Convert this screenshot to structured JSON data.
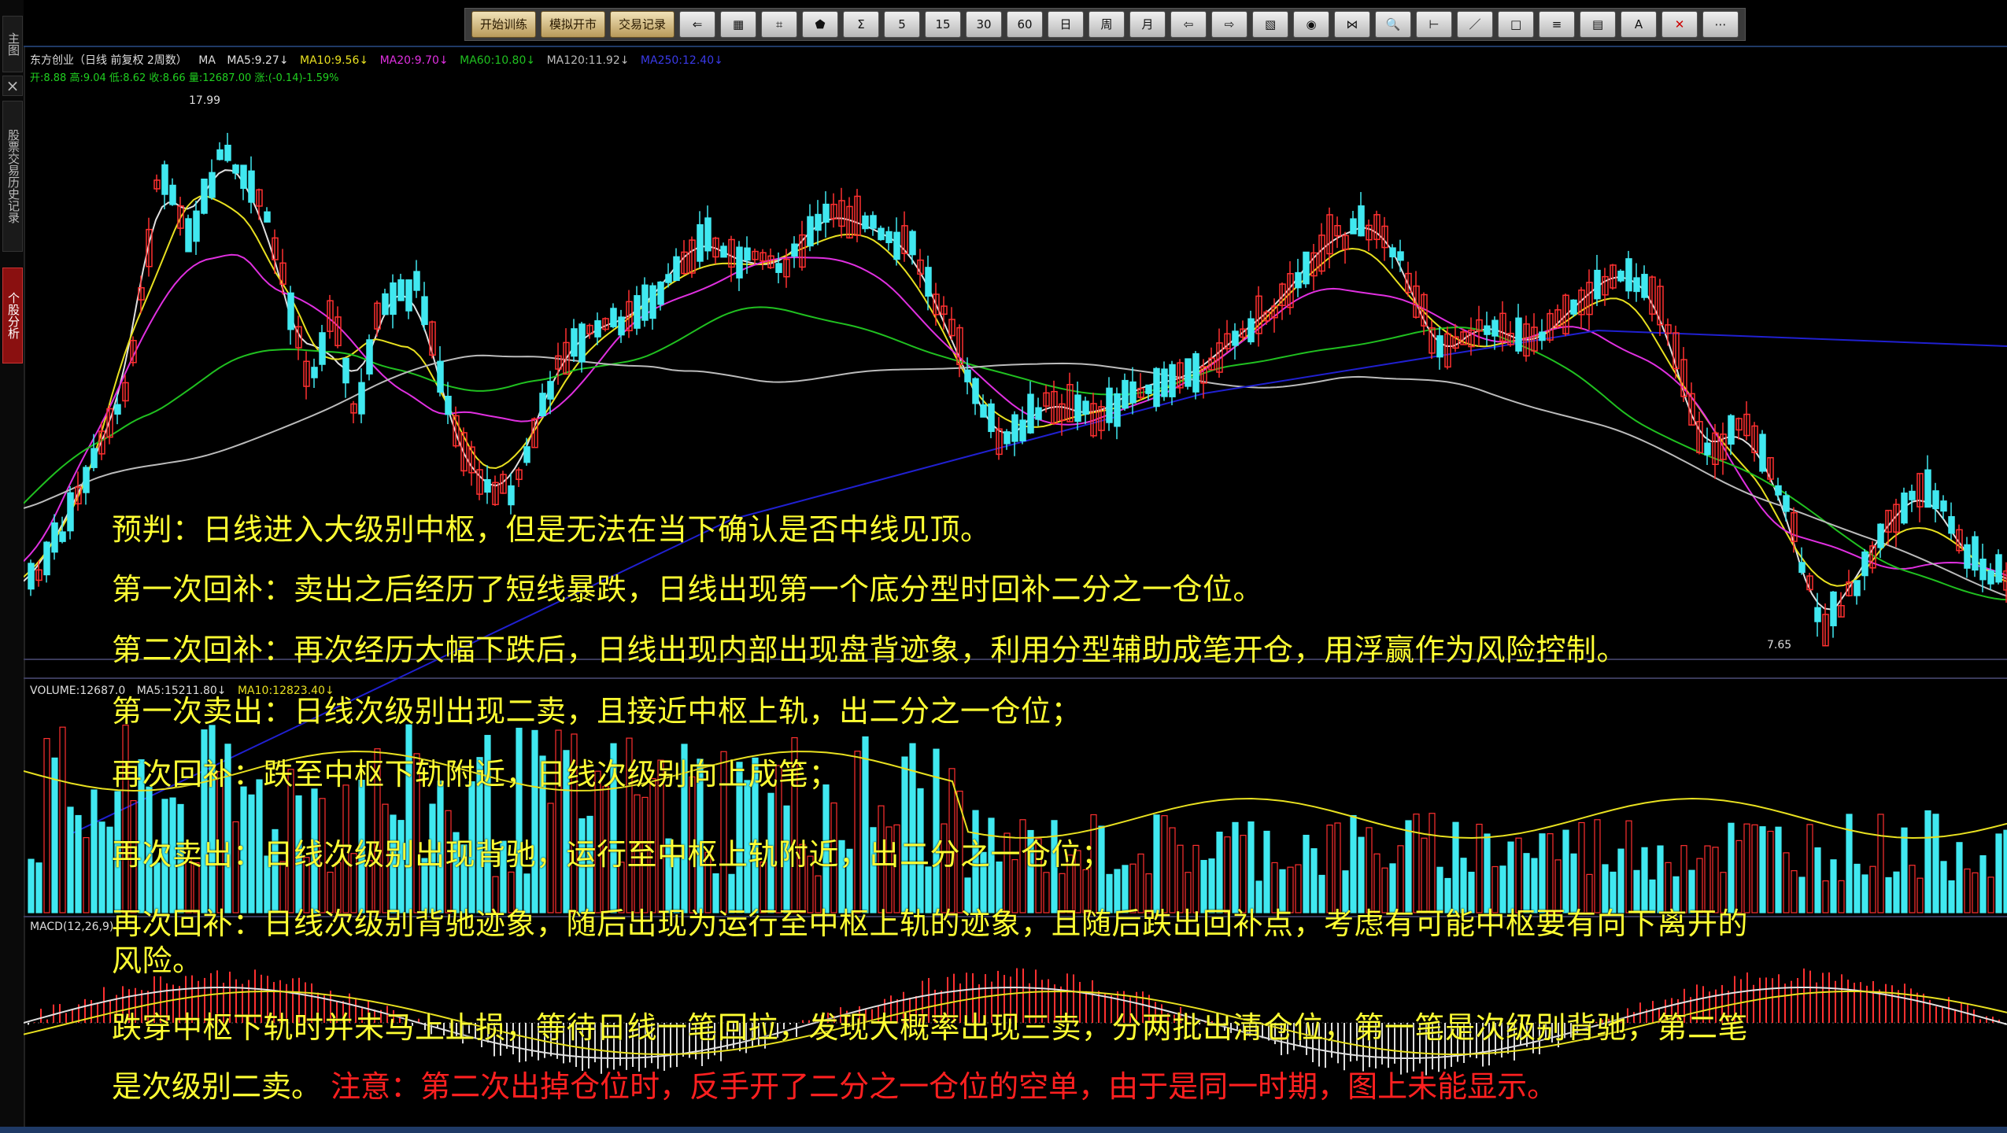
{
  "sidebar": {
    "main_tab": "主图",
    "close": "×",
    "history_tab": "股票交易历史记录",
    "analysis_tab": "个股分析"
  },
  "toolbar": {
    "buttons_text": [
      "开始训练",
      "模拟开市",
      "交易记录"
    ],
    "icons": [
      "back-arrow-icon",
      "grid-icon",
      "grid2-icon",
      "kline-icon",
      "1min",
      "5",
      "15",
      "30",
      "60",
      "日",
      "周",
      "月",
      "prev-icon",
      "next-icon",
      "mark-icon",
      "circle-icon",
      "fit-icon",
      "zoom-icon",
      "range-icon",
      "line-icon",
      "rect-icon",
      "fib-icon",
      "channel-icon",
      "text-icon",
      "delete-icon",
      "more-icon"
    ],
    "icon_labels": [
      "⇐",
      "▦",
      "⌗",
      "⬟",
      "Σ",
      "5",
      "15",
      "30",
      "60",
      "日",
      "周",
      "月",
      "⇦",
      "⇨",
      "▧",
      "◉",
      "⋈",
      "🔍",
      "⊢",
      "／",
      "□",
      "≡",
      "▤",
      "A",
      "✕",
      "⋯"
    ]
  },
  "info": {
    "stock": "东方创业（日线 前复权 2周数）",
    "ma_label": "MA",
    "ma5": "MA5:9.27↓",
    "ma10": "MA10:9.56↓",
    "ma20": "MA20:9.70↓",
    "ma60": "MA60:10.80↓",
    "ma120": "MA120:11.92↓",
    "ma250": "MA250:12.40↓",
    "line2": "开:8.88  高:9.04  低:8.62  收:8.66  量:12687.00  涨:(-0.14)-1.59%",
    "volume": "VOLUME:12687.0",
    "vol_ma5": "MA5:15211.80↓",
    "vol_ma10": "MA10:12823.40↓",
    "macd": "MACD(12,26,9)"
  },
  "price_labels": {
    "high": "17.99",
    "low": "7.65"
  },
  "notes": {
    "n1": "预判：日线进入大级别中枢，但是无法在当下确认是否中线见顶。",
    "n2": "第一次回补：卖出之后经历了短线暴跌，日线出现第一个底分型时回补二分之一仓位。",
    "n3": "第二次回补：再次经历大幅下跌后，日线出现内部出现盘背迹象，利用分型辅助成笔开仓，用浮赢作为风险控制。",
    "n4": "第一次卖出：日线次级别出现二卖，且接近中枢上轨，出二分之一仓位；",
    "n5": "再次回补：跌至中枢下轨附近，日线次级别向上成笔；",
    "n6": "再次卖出：日线次级别出现背驰，运行至中枢上轨附近，出二分之一仓位；",
    "n7a": "再次回补：日线次级别背驰迹象，随后出现为运行至中枢上轨的迹象，且随后跌出回补点，考虑有可能中枢要有向下离开的",
    "n7b": "风险。",
    "n8a": "跌穿中枢下轨时并未马上止损，等待日线一笔回拉，发现大概率出现三卖，分两批出清仓位，第一笔是次级别背驰，第二笔",
    "n8b": "是次级别二卖。",
    "n8c": "注意：第二次出掉仓位时，反手开了二分之一仓位的空单，由于是同一时期，图上未能显示。"
  },
  "colors": {
    "up": "#ff3030",
    "down": "#40e8f0",
    "ma5": "#e0e0e0",
    "ma10": "#e8e020",
    "ma20": "#e030e0",
    "ma60": "#20c020",
    "ma120": "#bbbbbb",
    "ma250": "#2020d0",
    "note": "#ffff33",
    "warning": "#ff2020"
  }
}
